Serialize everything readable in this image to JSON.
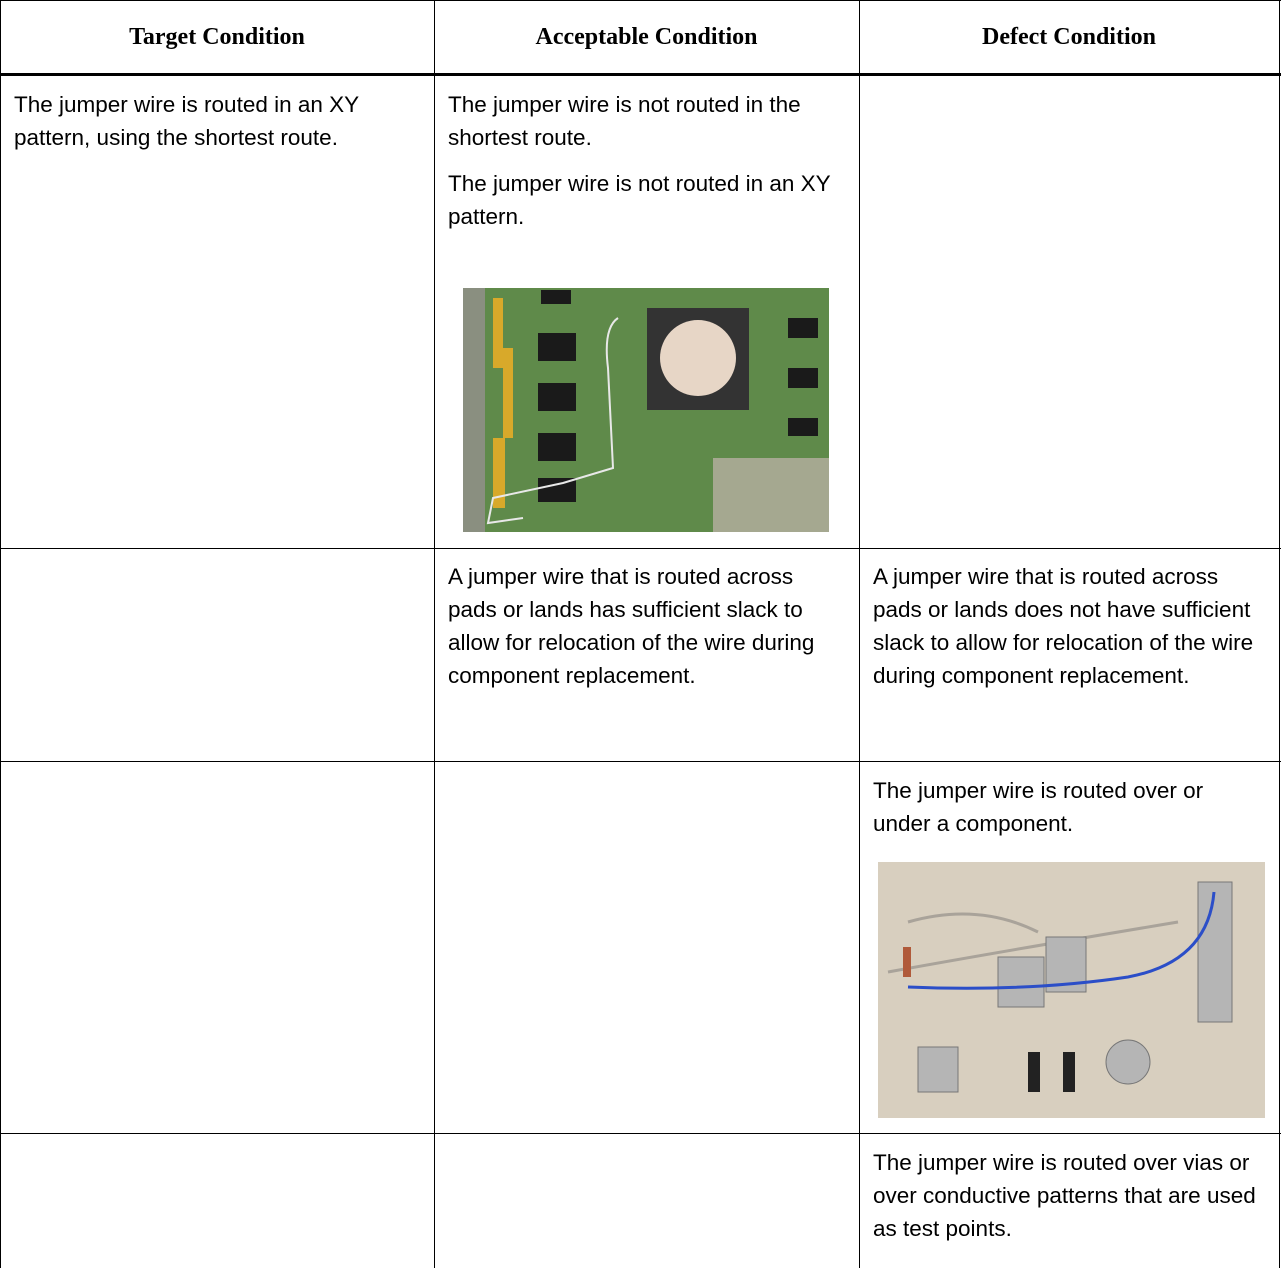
{
  "table": {
    "headers": [
      "Target Condition",
      "Acceptable Condition",
      "Defect Condition"
    ],
    "rows": [
      [
        [
          "The jumper wire is routed in an XY pattern, using the shortest route."
        ],
        [
          "The jumper wire is not routed in the shortest route.",
          "The jumper wire is not routed in an XY pattern."
        ],
        []
      ],
      [
        [],
        [
          "A jumper wire that is routed across pads or lands has sufficient slack to allow for relocation of the wire during component replacement."
        ],
        [
          "A jumper wire that is routed across pads or lands does not have sufficient slack to allow for relocation of the wire during component replacement."
        ]
      ],
      [
        [],
        [],
        [
          "The jumper wire is routed over or under a component."
        ]
      ],
      [
        [],
        [],
        [
          "The jumper wire is routed over vias or over conductive patterns that are used as test points."
        ]
      ]
    ]
  }
}
